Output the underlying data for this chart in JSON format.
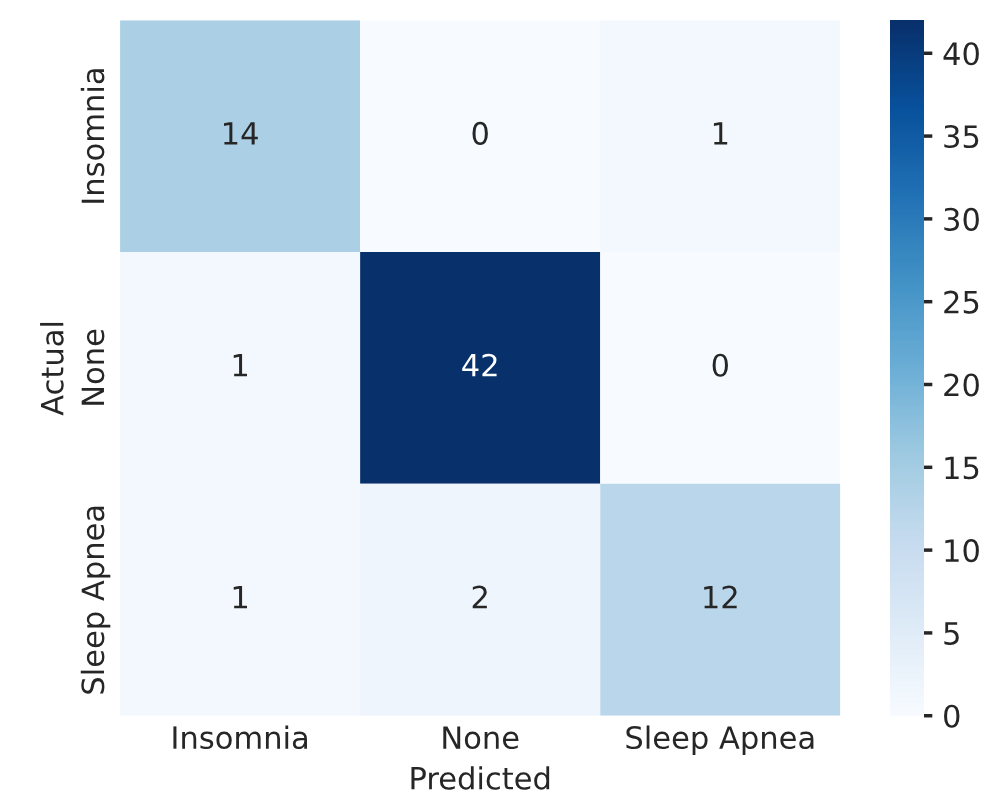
{
  "chart_data": {
    "type": "heatmap",
    "xlabel": "Predicted",
    "ylabel": "Actual",
    "categories": [
      "Insomnia",
      "None",
      "Sleep Apnea"
    ],
    "y_categories": [
      "Insomnia",
      "None",
      "Sleep Apnea"
    ],
    "cells": [
      [
        14,
        0,
        1
      ],
      [
        1,
        42,
        0
      ],
      [
        1,
        2,
        12
      ]
    ],
    "data_labels": true,
    "clim": [
      0,
      42
    ],
    "cticks": [
      0,
      5,
      10,
      15,
      20,
      25,
      30,
      35,
      40
    ],
    "grid": false
  }
}
